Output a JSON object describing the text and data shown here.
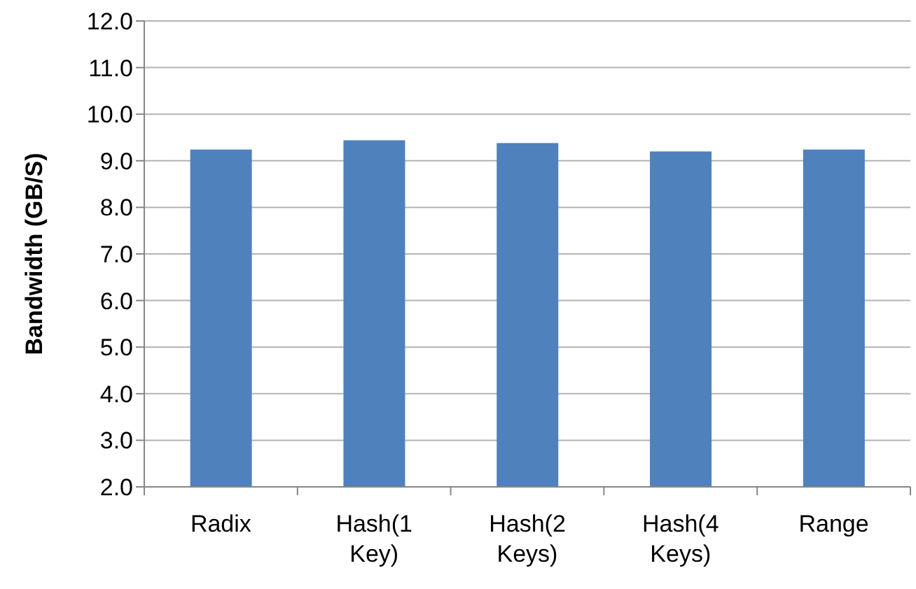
{
  "chart_data": {
    "type": "bar",
    "ylabel": "Bandwidth (GB/S)",
    "categories": [
      "Radix",
      "Hash(1 Key)",
      "Hash(2 Keys)",
      "Hash(4 Keys)",
      "Range"
    ],
    "values": [
      9.24,
      9.44,
      9.38,
      9.2,
      9.24
    ],
    "color": "#4f81bd",
    "ylim": [
      2,
      12
    ],
    "yticks": [
      {
        "value": 2,
        "label": "2.0"
      },
      {
        "value": 3,
        "label": "3.0"
      },
      {
        "value": 4,
        "label": "4.0"
      },
      {
        "value": 5,
        "label": "5.0"
      },
      {
        "value": 6,
        "label": "6.0"
      },
      {
        "value": 7,
        "label": "7.0"
      },
      {
        "value": 8,
        "label": "8.0"
      },
      {
        "value": 9,
        "label": "9.0"
      },
      {
        "value": 10,
        "label": "10.0"
      },
      {
        "value": 11,
        "label": "11.0"
      },
      {
        "value": 12,
        "label": "12.0"
      }
    ],
    "grid": "y"
  }
}
